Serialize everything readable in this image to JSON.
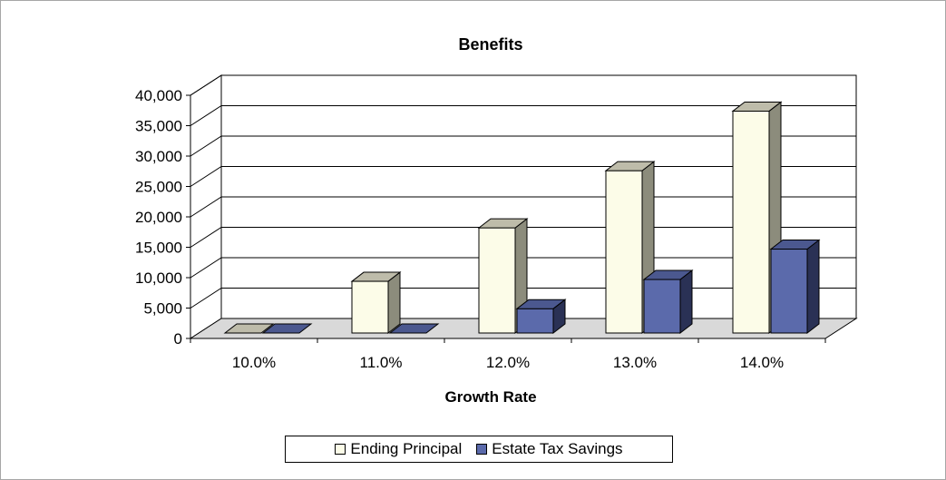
{
  "chart_data": {
    "type": "bar",
    "title": "Benefits",
    "xlabel": "Growth Rate",
    "ylabel": "",
    "categories": [
      "10.0%",
      "11.0%",
      "12.0%",
      "13.0%",
      "14.0%"
    ],
    "series": [
      {
        "name": "Ending Principal",
        "values": [
          0,
          8500,
          17300,
          26700,
          36500
        ]
      },
      {
        "name": "Estate Tax Savings",
        "values": [
          0,
          0,
          4000,
          8800,
          13800
        ]
      }
    ],
    "ylim": [
      0,
      40000
    ],
    "yticks": [
      "0",
      "5,000",
      "10,000",
      "15,000",
      "20,000",
      "25,000",
      "30,000",
      "35,000",
      "40,000"
    ],
    "grid": true,
    "legend_position": "bottom",
    "colors": {
      "series": [
        "#fcfce8",
        "#5b6aab"
      ],
      "series_side": [
        "#8c8c7c",
        "#2a3155"
      ],
      "series_top": [
        "#bebcaa",
        "#4b588f"
      ],
      "floor": "#d9d9d9"
    }
  }
}
